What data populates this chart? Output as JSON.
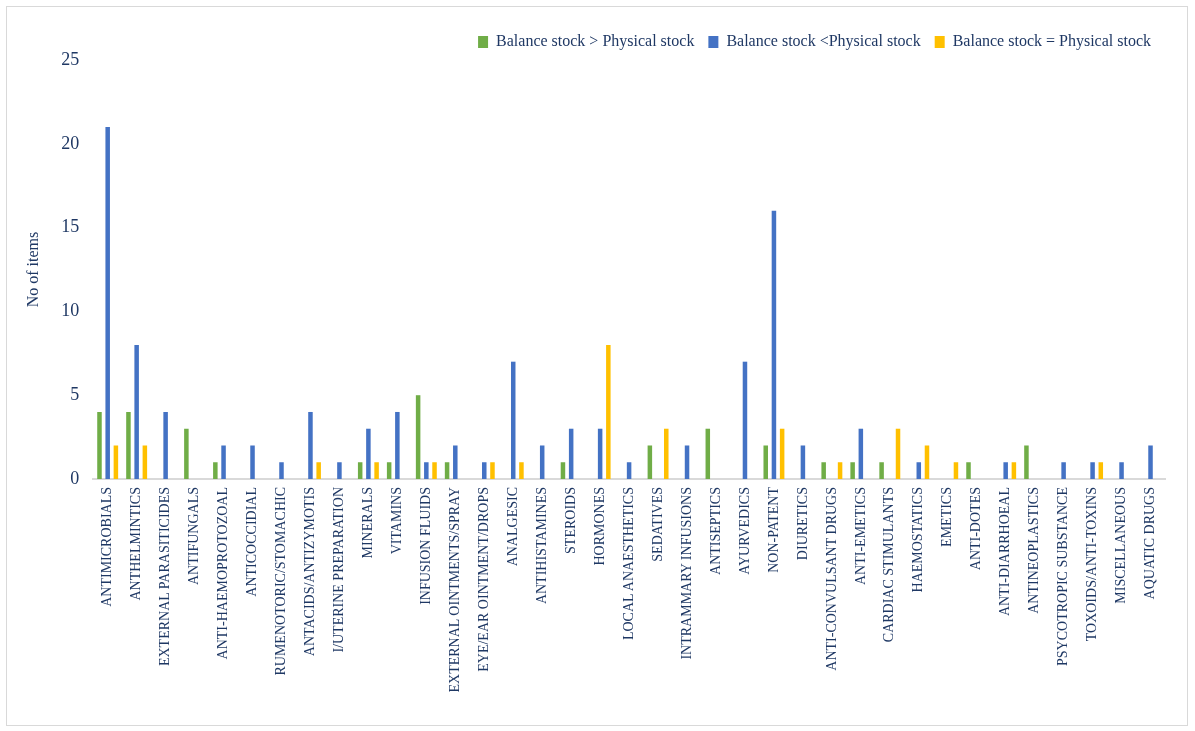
{
  "chart_data": {
    "type": "bar",
    "ylabel": "No of items",
    "categories": [
      "ANTIMICROBIALS",
      "ANTHELMINTICS",
      "EXTERNAL PARASITICIDES",
      "ANTIFUNGALS",
      "ANTI-HAEMOPROTOZOAL",
      "ANTICOCCIDIAL",
      "RUMENOTORIC/STOMACHIC",
      "ANTACIDS/ANTIZYMOTIS",
      "I/UTERINE PREPARATION",
      "MINERALS",
      "VITAMINS",
      "INFUSION FLUIDS",
      "EXTERNAL OINTMENTS/SPRAY",
      "EYE/EAR OINTMENT/DROPS",
      "ANALGESIC",
      "ANTIHISTAMINES",
      "STEROIDS",
      "HORMONES",
      "LOCAL ANAESTHETICS",
      "SEDATIVES",
      "INTRAMMARY INFUSIONS",
      "ANTISEPTICS",
      "AYURVEDICS",
      "NON-PATENT",
      "DIURETICS",
      "ANTI-CONVULSANT DRUGS",
      "ANTI-EMETICS",
      "CARDIAC STIMULANTS",
      "HAEMOSTATICS",
      "EMETICS",
      "ANTI-DOTES",
      "ANTI-DIARRHOEAL",
      "ANTINEOPLASTICS",
      "PSYCOTROPIC SUBSTANCE",
      "TOXOIDS/ANTI-TOXINS",
      "MISCELLANEOUS",
      "AQUATIC DRUGS"
    ],
    "series": [
      {
        "name": "Balance stock > Physical stock",
        "color": "#70ad47",
        "values": [
          4,
          4,
          0,
          3,
          1,
          0,
          0,
          0,
          0,
          1,
          1,
          5,
          1,
          0,
          0,
          0,
          1,
          0,
          0,
          2,
          0,
          3,
          0,
          2,
          0,
          1,
          1,
          1,
          0,
          0,
          1,
          0,
          2,
          0,
          0,
          0,
          0
        ]
      },
      {
        "name": "Balance stock <Physical stock",
        "color": "#4472c4",
        "values": [
          21,
          8,
          4,
          0,
          2,
          2,
          1,
          4,
          1,
          3,
          4,
          1,
          2,
          1,
          7,
          2,
          3,
          3,
          1,
          0,
          2,
          0,
          7,
          16,
          2,
          0,
          3,
          0,
          1,
          0,
          0,
          1,
          0,
          1,
          1,
          1,
          2
        ]
      },
      {
        "name": "Balance stock = Physical stock",
        "color": "#ffc000",
        "values": [
          2,
          2,
          0,
          0,
          0,
          0,
          0,
          1,
          0,
          1,
          0,
          1,
          0,
          1,
          1,
          0,
          0,
          8,
          0,
          3,
          0,
          0,
          0,
          3,
          0,
          1,
          0,
          3,
          2,
          1,
          0,
          1,
          0,
          0,
          1,
          0,
          0
        ]
      }
    ],
    "ylim": [
      0,
      25
    ],
    "yticks": [
      0,
      5,
      10,
      15,
      20,
      25
    ],
    "grid": false,
    "legend": "top right"
  }
}
